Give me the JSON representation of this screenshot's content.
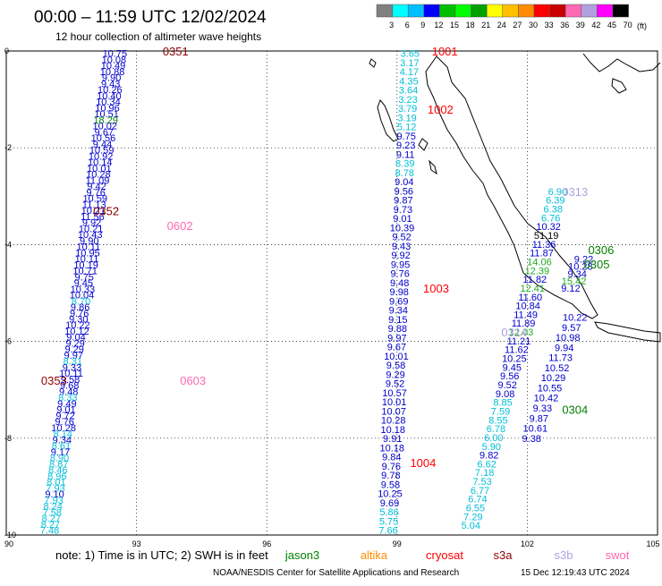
{
  "header": {
    "title": "00:00 – 11:59 UTC 12/02/2024",
    "subtitle": "12 hour collection of altimeter wave heights"
  },
  "colorbar": {
    "unit_label": "(ft)",
    "colors": [
      "#808080",
      "#00ffff",
      "#00bfff",
      "#0000ff",
      "#00bf00",
      "#00ff00",
      "#00a000",
      "#ffff00",
      "#ffc000",
      "#ff8c00",
      "#ff0000",
      "#c80000",
      "#ff69b4",
      "#b0a0e0",
      "#ff00ff",
      "#000000"
    ],
    "labels": [
      "3",
      "6",
      "9",
      "12",
      "15",
      "18",
      "21",
      "24",
      "27",
      "30",
      "33",
      "36",
      "39",
      "42",
      "45",
      "70"
    ]
  },
  "axes": {
    "x_ticks": [
      "90",
      "93",
      "96",
      "99",
      "102",
      "105"
    ],
    "y_ticks": [
      "0",
      "-2",
      "-4",
      "-6",
      "-8",
      "-10"
    ]
  },
  "footer": {
    "note_prefix": "note: 1) Time is in UTC; 2) SWH is in feet",
    "satellites": [
      {
        "name": "jason3",
        "color": "#008000"
      },
      {
        "name": "altika",
        "color": "#ff8c00"
      },
      {
        "name": "cryosat",
        "color": "#ff0000"
      },
      {
        "name": "s3a",
        "color": "#8b0000"
      },
      {
        "name": "s3b",
        "color": "#b0a0e0"
      },
      {
        "name": "swot",
        "color": "#ff69b4"
      }
    ],
    "credit": "NOAA/NESDIS Center for Satellite Applications and Research",
    "timestamp": "15 Dec 12:19:43 UTC 2024"
  },
  "chart_data": {
    "type": "scatter",
    "title": "00:00 – 11:59 UTC 12/02/2024",
    "subtitle": "12 hour collection of altimeter wave heights",
    "xlim": [
      90,
      105
    ],
    "ylim": [
      -10,
      0
    ],
    "x_ticks": [
      90,
      93,
      96,
      99,
      102,
      105
    ],
    "y_ticks": [
      0,
      -2,
      -4,
      -6,
      -8,
      -10
    ],
    "grid": true,
    "tracks": [
      {
        "satellite": "cryosat",
        "label": "1001",
        "lon": 100.1,
        "lat": 0.0
      },
      {
        "satellite": "cryosat",
        "label": "1002",
        "lon": 100.0,
        "lat": -1.2
      },
      {
        "satellite": "cryosat",
        "label": "1003",
        "lon": 99.9,
        "lat": -4.9
      },
      {
        "satellite": "cryosat",
        "label": "1004",
        "lon": 99.6,
        "lat": -8.5
      },
      {
        "satellite": "s3a",
        "label": "0351",
        "lon": 93.9,
        "lat": 0.0
      },
      {
        "satellite": "s3a",
        "label": "0352",
        "lon": 92.3,
        "lat": -3.3
      },
      {
        "satellite": "s3a",
        "label": "0353",
        "lon": 91.1,
        "lat": -6.8
      },
      {
        "satellite": "swot",
        "label": "0602",
        "lon": 94.0,
        "lat": -3.6
      },
      {
        "satellite": "swot",
        "label": "0603",
        "lon": 94.3,
        "lat": -6.8
      },
      {
        "satellite": "s3b",
        "label": "0313",
        "lon": 103.1,
        "lat": -2.9
      },
      {
        "satellite": "s3b",
        "label": "0314",
        "lon": 101.7,
        "lat": -5.8
      },
      {
        "satellite": "jason3",
        "label": "0306",
        "lon": 103.7,
        "lat": -4.1
      },
      {
        "satellite": "jason3",
        "label": "0305",
        "lon": 103.6,
        "lat": -4.4
      },
      {
        "satellite": "jason3",
        "label": "0304",
        "lon": 103.1,
        "lat": -7.4
      }
    ],
    "series": [
      {
        "lon0": 92.5,
        "lat0": -0.05,
        "lon1": 91.0,
        "lat1": -9.9,
        "values": [
          "10.75",
          "10.08",
          "10.49",
          "10.88",
          "9.90",
          "9.43",
          "10.26",
          "10.40",
          "10.34",
          "10.96",
          "10.51",
          "18.29",
          "10.02",
          "9.67",
          "10.56",
          "9.44",
          "10.59",
          "10.92",
          "10.14",
          "10.01",
          "10.28",
          "11.09",
          "9.42",
          "9.76",
          "10.59",
          "11.13",
          "10.21",
          "11.56",
          "9.92",
          "10.21",
          "10.43",
          "9.90",
          "10.11",
          "10.95",
          "10.11",
          "10.19",
          "10.71",
          "9.75",
          "9.45",
          "10.33",
          "10.04",
          "8.70",
          "9.86",
          "9.76",
          "9.30",
          "10.22",
          "10.12",
          "9.04",
          "9.29",
          "9.29",
          "9.97",
          "8.31",
          "9.33",
          "10.11",
          "9.58",
          "9.68",
          "9.48",
          "8.33",
          "9.49",
          "9.01",
          "9.72",
          "9.76",
          "10.28",
          "8.14",
          "9.34",
          "8.61",
          "9.17",
          "8.90",
          "8.87",
          "8.46",
          "8.96",
          "8.01",
          "7.93",
          "9.10",
          "7.93",
          "8.24",
          "7.58",
          "8.27",
          "8.27",
          "7.48"
        ]
      },
      {
        "lon0": 99.3,
        "lat0": -0.05,
        "lon1": 98.8,
        "lat1": -9.9,
        "values": [
          "3.65",
          "3.17",
          "4.17",
          "4.35",
          "3.64",
          "3.23",
          "3.79",
          "3.19",
          "5.12",
          "9.75",
          "9.23",
          "9.11",
          "8.39",
          "8.78",
          "9.04",
          "9.56",
          "9.87",
          "9.73",
          "9.01",
          "10.39",
          "9.52",
          "9.43",
          "9.92",
          "9.95",
          "9.76",
          "9.48",
          "9.98",
          "9.69",
          "9.34",
          "9.15",
          "9.88",
          "9.97",
          "9.67",
          "10.01",
          "9.58",
          "9.29",
          "9.52",
          "10.57",
          "10.01",
          "10.07",
          "10.28",
          "10.18",
          "9.91",
          "10.18",
          "9.84",
          "9.76",
          "9.78",
          "9.58",
          "10.25",
          "9.69",
          "5.86",
          "5.75",
          "7.66"
        ]
      },
      {
        "lon0": 102.7,
        "lat0": -2.9,
        "lon1": 100.7,
        "lat1": -9.8,
        "values": [
          "6.90",
          "6.39",
          "6.38",
          "6.76",
          "10.32",
          "51.19",
          "11.36",
          "11.87",
          "14.06",
          "12.39",
          "11.82",
          "12.41",
          "11.60",
          "10.84",
          "11.49",
          "11.89",
          "12.03",
          "11.21",
          "11.62",
          "10.25",
          "9.45",
          "9.56",
          "9.52",
          "9.08",
          "8.85",
          "7.59",
          "8.55",
          "6.78",
          "6.00",
          "5.90",
          "9.82",
          "6.62",
          "7.18",
          "7.53",
          "6.77",
          "6.74",
          "6.55",
          "7.29",
          "5.04"
        ]
      },
      {
        "lon0": 103.1,
        "lat0": -5.5,
        "lon1": 102.1,
        "lat1": -8.0,
        "values": [
          "10.22",
          "9.57",
          "10.98",
          "9.94",
          "11.73",
          "10.52",
          "10.29",
          "10.55",
          "10.42",
          "9.33",
          "9.87",
          "10.61",
          "9.38"
        ]
      },
      {
        "lon0": 103.3,
        "lat0": -4.3,
        "lon1": 103.0,
        "lat1": -4.9,
        "values": [
          "9.22",
          "10.28",
          "9.34",
          "15.42",
          "9.12"
        ]
      }
    ]
  }
}
